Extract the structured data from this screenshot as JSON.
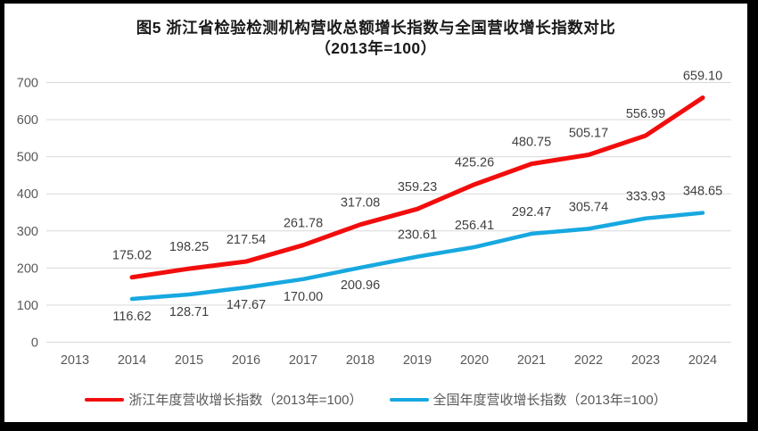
{
  "title": {
    "line1": "图5  浙江省检验检测机构营收总额增长指数与全国营收增长指数对比",
    "line2": "（2013年=100）"
  },
  "chart_data": {
    "type": "line",
    "title": "图5 浙江省检验检测机构营收总额增长指数与全国营收增长指数对比（2013年=100）",
    "categories": [
      "2013",
      "2014",
      "2015",
      "2016",
      "2017",
      "2018",
      "2019",
      "2020",
      "2021",
      "2022",
      "2023",
      "2024"
    ],
    "series": [
      {
        "name": "浙江年度营收增长指数（2013年=100）",
        "color": "#f20d0d",
        "values": [
          null,
          175.02,
          198.25,
          217.54,
          261.78,
          317.08,
          359.23,
          425.26,
          480.75,
          505.17,
          556.99,
          659.1
        ],
        "label_side": "above"
      },
      {
        "name": "全国年度营收增长指数（2013年=100）",
        "color": "#17a8e0",
        "values": [
          null,
          116.62,
          128.71,
          147.67,
          170.0,
          200.96,
          230.61,
          256.41,
          292.47,
          305.74,
          333.93,
          348.65
        ],
        "label_side": "mixed",
        "labels_below_indices": [
          1,
          2,
          3,
          4,
          5
        ]
      }
    ],
    "ylim": [
      0,
      700
    ],
    "yticks": [
      0,
      100,
      200,
      300,
      400,
      500,
      600,
      700
    ],
    "xlabel": "",
    "ylabel": "",
    "grid": "horizontal",
    "legend_position": "bottom"
  },
  "colors": {
    "grid": "#d9d9d9",
    "axis_text": "#595959",
    "data_label_text": "#404040",
    "title_text": "#1a1a1a",
    "frame_border": "#000000",
    "background": "#ffffff"
  }
}
